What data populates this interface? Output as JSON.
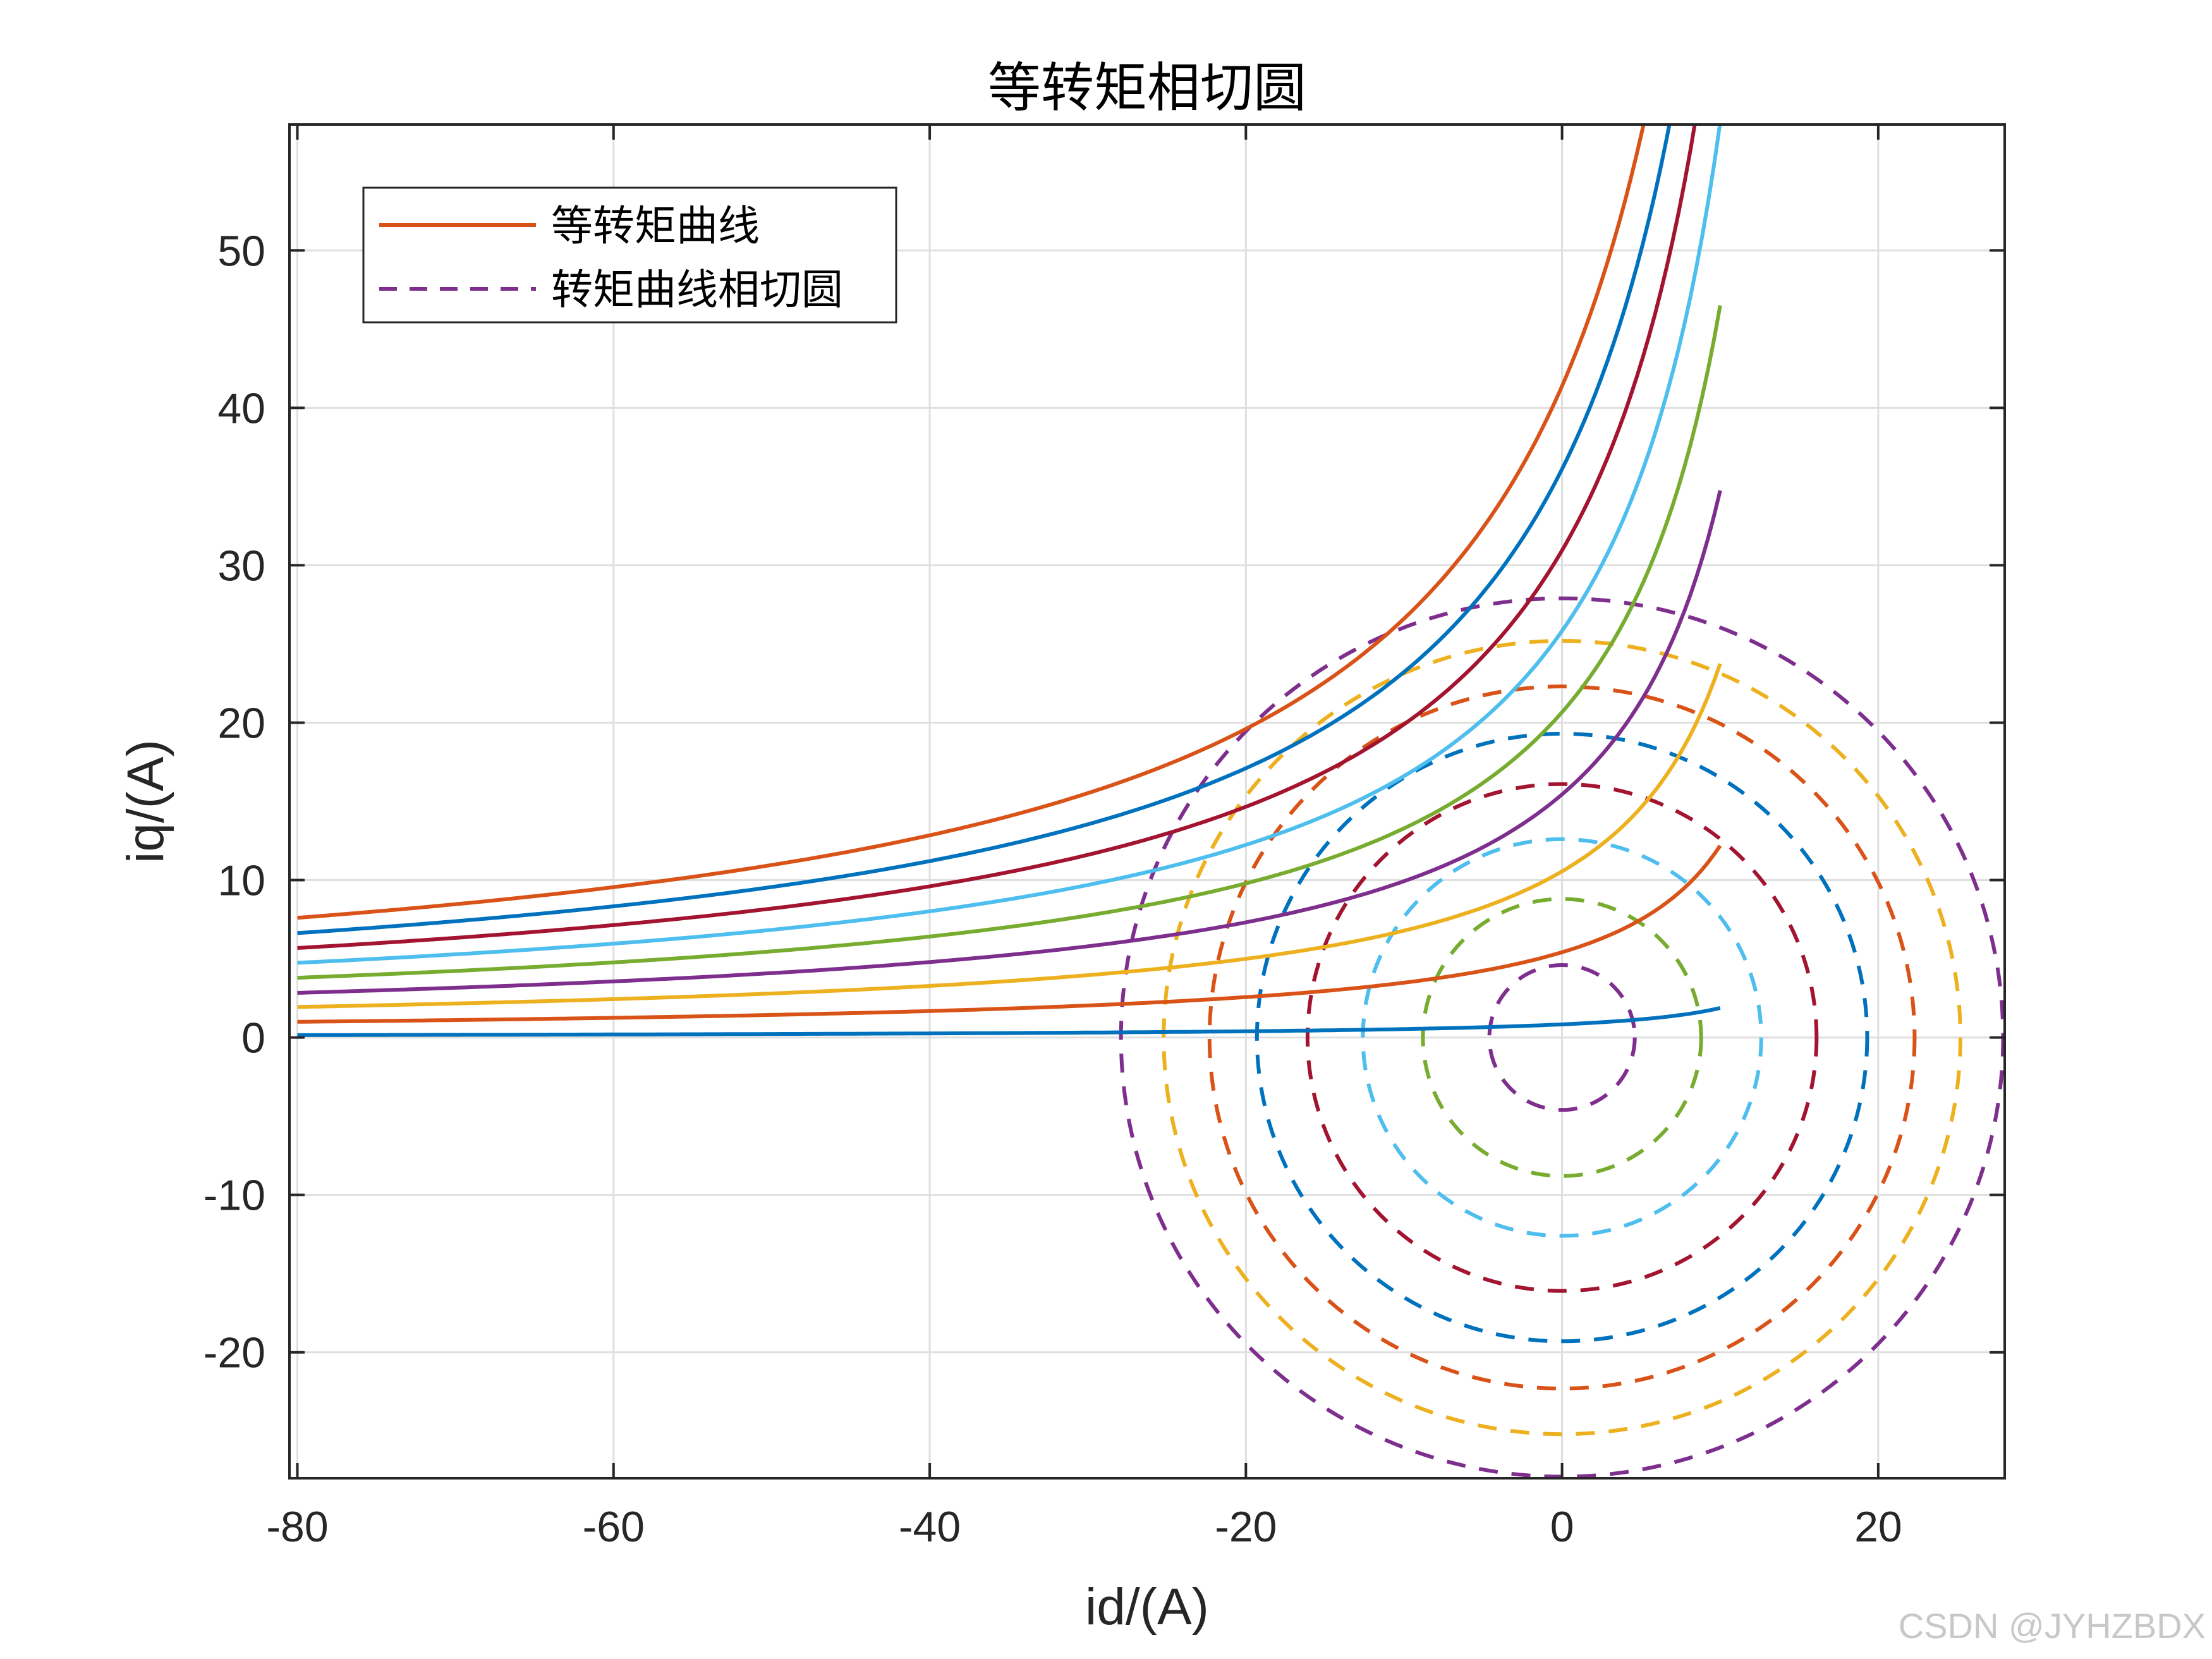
{
  "chart_data": {
    "type": "line",
    "title": "等转矩相切圆",
    "xlabel": "id/(A)",
    "ylabel": "iq/(A)",
    "xlim": [
      -80.5,
      28
    ],
    "ylim": [
      -28,
      58
    ],
    "xticks": [
      -80,
      -60,
      -40,
      -20,
      0,
      20
    ],
    "yticks": [
      -20,
      -10,
      0,
      10,
      20,
      30,
      40,
      50
    ],
    "xtick_labels": [
      "-80",
      "-60",
      "-40",
      "-20",
      "0",
      "20"
    ],
    "ytick_labels": [
      "-20",
      "-10",
      "0",
      "10",
      "20",
      "30",
      "40",
      "50"
    ],
    "grid": true,
    "legend": {
      "placement": "top-left",
      "entries": [
        {
          "label": "等转矩曲线",
          "style": "solid",
          "color": "#D95319"
        },
        {
          "label": "转矩曲线相切圆",
          "style": "dashed",
          "color": "#7E2F8E"
        }
      ]
    },
    "torque_curves": {
      "style": "solid",
      "x_range": [
        -80,
        10
      ],
      "equation": "iq = K / (18 - id)",
      "series": [
        {
          "K": 15.0,
          "color": "#0072BD"
        },
        {
          "K": 97.5,
          "color": "#D95319"
        },
        {
          "K": 190.0,
          "color": "#EDB120"
        },
        {
          "K": 278.0,
          "color": "#7E2F8E"
        },
        {
          "K": 372.0,
          "color": "#77AC30"
        },
        {
          "K": 465.0,
          "color": "#4DBEEE"
        },
        {
          "K": 557.0,
          "color": "#A2142F"
        },
        {
          "K": 650.0,
          "color": "#0072BD"
        },
        {
          "K": 745.0,
          "color": "#D95319"
        }
      ]
    },
    "tangent_circles": {
      "style": "dashed",
      "center": [
        0,
        0
      ],
      "series": [
        {
          "radius": 4.6,
          "color": "#7E2F8E"
        },
        {
          "radius": 8.8,
          "color": "#77AC30"
        },
        {
          "radius": 12.6,
          "color": "#4DBEEE"
        },
        {
          "radius": 16.1,
          "color": "#A2142F"
        },
        {
          "radius": 19.3,
          "color": "#0072BD"
        },
        {
          "radius": 22.3,
          "color": "#D95319"
        },
        {
          "radius": 25.2,
          "color": "#EDB120"
        },
        {
          "radius": 27.9,
          "color": "#7E2F8E"
        }
      ]
    }
  },
  "watermark": "CSDN @JYHZBDX"
}
